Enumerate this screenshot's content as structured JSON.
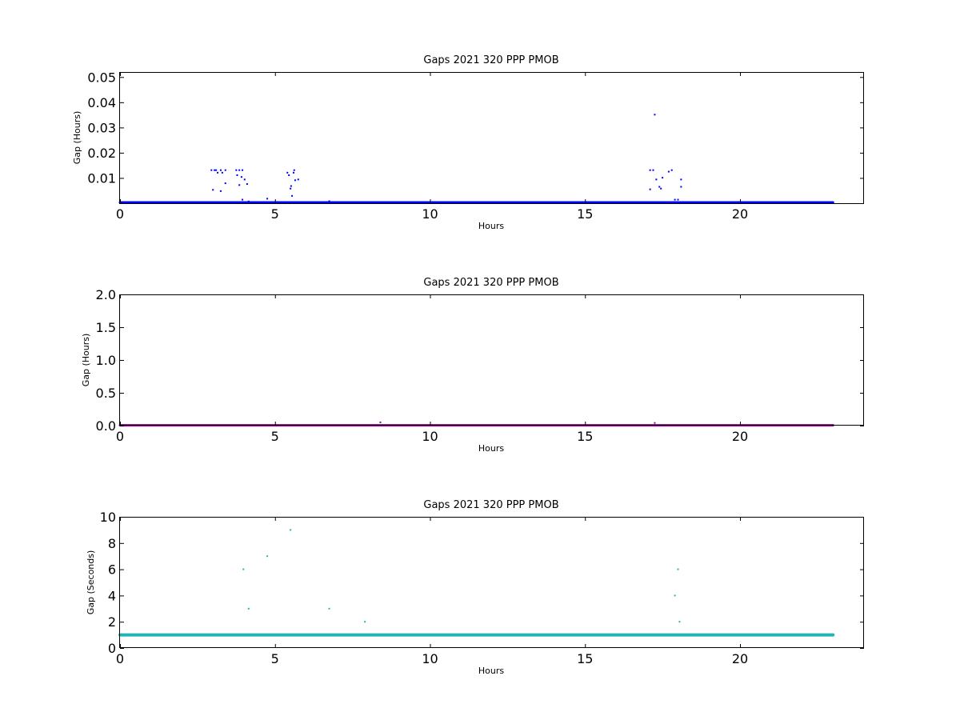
{
  "chart_data": [
    {
      "type": "scatter",
      "title": "Gaps 2021 320 PPP  PMOB",
      "xlabel": "Hours",
      "ylabel": "Gap (Hours)",
      "xlim": [
        0,
        24
      ],
      "ylim": [
        0,
        0.052
      ],
      "xticks": [
        0,
        5,
        10,
        15,
        20
      ],
      "xtick_labels": [
        "0",
        "5",
        "10",
        "15",
        "20"
      ],
      "yticks": [
        0.01,
        0.02,
        0.03,
        0.04,
        0.05
      ],
      "ytick_labels": [
        "0.01",
        "0.02",
        "0.03",
        "0.04",
        "0.05"
      ],
      "grid": false,
      "series": [
        {
          "color": "#0000ff",
          "baseline": {
            "x_start": 0,
            "x_end": 23.0,
            "y": 0.0003
          },
          "points": [
            [
              2.95,
              0.0131
            ],
            [
              3.05,
              0.0131
            ],
            [
              3.1,
              0.0131
            ],
            [
              3.15,
              0.0121
            ],
            [
              3.25,
              0.0131
            ],
            [
              3.3,
              0.0121
            ],
            [
              3.4,
              0.0131
            ],
            [
              3.75,
              0.0131
            ],
            [
              3.85,
              0.0131
            ],
            [
              3.95,
              0.0131
            ],
            [
              3.78,
              0.0111
            ],
            [
              3.92,
              0.0104
            ],
            [
              4.02,
              0.0094
            ],
            [
              4.1,
              0.0076
            ],
            [
              3.85,
              0.0072
            ],
            [
              3.4,
              0.0079
            ],
            [
              3.0,
              0.0053
            ],
            [
              3.25,
              0.0048
            ],
            [
              3.95,
              0.0014
            ],
            [
              4.15,
              0.0007
            ],
            [
              4.75,
              0.0018
            ],
            [
              5.4,
              0.0121
            ],
            [
              5.45,
              0.0111
            ],
            [
              5.5,
              0.0058
            ],
            [
              5.52,
              0.0068
            ],
            [
              5.55,
              0.0029
            ],
            [
              5.6,
              0.0121
            ],
            [
              5.62,
              0.0131
            ],
            [
              5.65,
              0.0091
            ],
            [
              5.75,
              0.0094
            ],
            [
              6.75,
              0.0008
            ],
            [
              8.4,
              0.0003
            ],
            [
              17.1,
              0.0131
            ],
            [
              17.2,
              0.0131
            ],
            [
              17.25,
              0.0351
            ],
            [
              17.3,
              0.0094
            ],
            [
              17.4,
              0.0065
            ],
            [
              17.5,
              0.0101
            ],
            [
              17.7,
              0.0125
            ],
            [
              17.8,
              0.0131
            ],
            [
              17.1,
              0.0055
            ],
            [
              17.45,
              0.0058
            ],
            [
              17.9,
              0.0014
            ],
            [
              18.0,
              0.0014
            ],
            [
              18.1,
              0.0094
            ],
            [
              18.1,
              0.0065
            ]
          ]
        }
      ]
    },
    {
      "type": "scatter",
      "title": "Gaps 2021 320 PPP  PMOB",
      "xlabel": "Hours",
      "ylabel": "Gap (Hours)",
      "xlim": [
        0,
        24
      ],
      "ylim": [
        0,
        2.0
      ],
      "xticks": [
        0,
        5,
        10,
        15,
        20
      ],
      "xtick_labels": [
        "0",
        "5",
        "10",
        "15",
        "20"
      ],
      "yticks": [
        0.0,
        0.5,
        1.0,
        1.5,
        2.0
      ],
      "ytick_labels": [
        "0.0",
        "0.5",
        "1.0",
        "1.5",
        "2.0"
      ],
      "grid": false,
      "series": [
        {
          "color": "#990099",
          "baseline": {
            "x_start": 0,
            "x_end": 23.0,
            "y": 0.005
          },
          "points": [
            [
              8.4,
              0.05
            ],
            [
              17.25,
              0.04
            ]
          ]
        }
      ]
    },
    {
      "type": "scatter",
      "title": "Gaps 2021 320 PPP  PMOB",
      "xlabel": "Hours",
      "ylabel": "Gap (Seconds)",
      "xlim": [
        0,
        24
      ],
      "ylim": [
        0,
        10
      ],
      "xticks": [
        0,
        5,
        10,
        15,
        20
      ],
      "xtick_labels": [
        "0",
        "5",
        "10",
        "15",
        "20"
      ],
      "yticks": [
        0,
        2,
        4,
        6,
        8,
        10
      ],
      "ytick_labels": [
        "0",
        "2",
        "4",
        "6",
        "8",
        "10"
      ],
      "grid": false,
      "series": [
        {
          "color": "#22b5b5",
          "baseline": {
            "x_start": 0,
            "x_end": 23.0,
            "y": 1.0
          },
          "points": [
            [
              3.98,
              6.0
            ],
            [
              4.15,
              3.0
            ],
            [
              4.75,
              7.0
            ],
            [
              5.5,
              9.0
            ],
            [
              6.75,
              3.0
            ],
            [
              7.9,
              2.0
            ],
            [
              17.9,
              4.0
            ],
            [
              18.0,
              6.0
            ],
            [
              18.05,
              2.0
            ]
          ]
        }
      ]
    }
  ]
}
